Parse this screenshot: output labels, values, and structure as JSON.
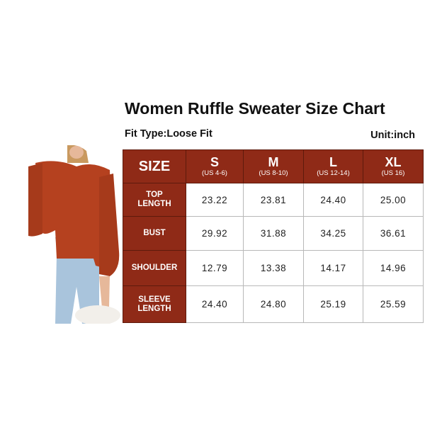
{
  "title": "Women Ruffle Sweater Size Chart",
  "fit_type": "Fit Type:Loose Fit",
  "unit": "Unit:inch",
  "colors": {
    "header": "#8f2a17",
    "sweater": "#b5411f",
    "jeans": "#a9c4dc"
  },
  "table": {
    "corner": "SIZE",
    "sizes": [
      {
        "size": "S",
        "us": "(US 4-6)"
      },
      {
        "size": "M",
        "us": "(US 8-10)"
      },
      {
        "size": "L",
        "us": "(US 12-14)"
      },
      {
        "size": "XL",
        "us": "(US 16)"
      }
    ],
    "rows": [
      {
        "label": [
          "TOP",
          "LENGTH"
        ],
        "values": [
          "23.22",
          "23.81",
          "24.40",
          "25.00"
        ]
      },
      {
        "label": [
          "BUST"
        ],
        "values": [
          "29.92",
          "31.88",
          "34.25",
          "36.61"
        ]
      },
      {
        "label": [
          "SHOULDER"
        ],
        "values": [
          "12.79",
          "13.38",
          "14.17",
          "14.96"
        ]
      },
      {
        "label": [
          "SLEEVE",
          "LENGTH"
        ],
        "values": [
          "24.40",
          "24.80",
          "25.19",
          "25.59"
        ]
      }
    ]
  }
}
